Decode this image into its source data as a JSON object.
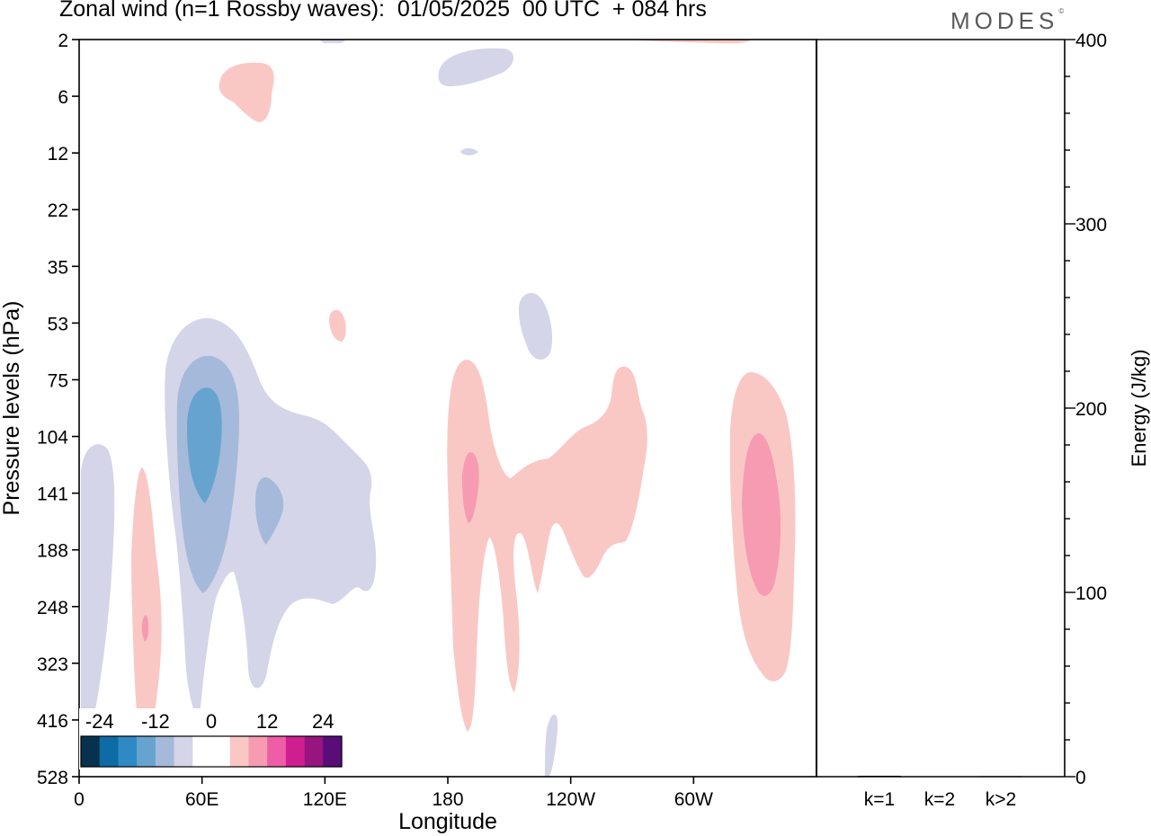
{
  "chart_data": {
    "type": "contour",
    "title": "Zonal wind (n=1 Rossby waves):  01/05/2025  00 UTC  + 084 hrs",
    "brand": "MODES",
    "xlabel": "Longitude",
    "ylabel": "Pressure levels (hPa)",
    "x_ticks": [
      "0",
      "60E",
      "120E",
      "180",
      "120W",
      "60W"
    ],
    "x_tick_degrees": [
      0,
      60,
      120,
      180,
      240,
      300
    ],
    "xlim": [
      0,
      360
    ],
    "y_levels": [
      "2",
      "6",
      "12",
      "22",
      "35",
      "53",
      "75",
      "104",
      "141",
      "188",
      "248",
      "323",
      "416",
      "528"
    ],
    "contour_levels": [
      -24,
      -21,
      -18,
      -15,
      -12,
      -9,
      -6,
      -3,
      3,
      6,
      9,
      12,
      15,
      18,
      21,
      24
    ],
    "colorbar_labels": [
      "-24",
      "-12",
      "0",
      "12",
      "24"
    ],
    "colorbar_colors": [
      "#06324e",
      "#0d6ba5",
      "#2e8ac4",
      "#66a4cf",
      "#a5b9da",
      "#d4d5e8",
      "#ffffff",
      "#ffffff",
      "#f9c8c5",
      "#f79bb2",
      "#ee5da6",
      "#cf1e8f",
      "#98147f",
      "#580d78"
    ],
    "features": [
      {
        "sign": "negative",
        "center_lon": 10,
        "center_level": "188",
        "peak": -3
      },
      {
        "sign": "negative",
        "center_lon": 63,
        "center_level": "104",
        "peak": -9
      },
      {
        "sign": "negative",
        "center_lon": 92,
        "center_level": "141",
        "peak": -6
      },
      {
        "sign": "negative",
        "center_lon": 210,
        "center_level": "53",
        "peak": -3
      },
      {
        "sign": "negative",
        "center_lon": 185,
        "center_level": "6",
        "peak": -3
      },
      {
        "sign": "positive",
        "center_lon": 32,
        "center_level": "248",
        "peak": 6
      },
      {
        "sign": "positive",
        "center_lon": 89,
        "center_level": "6",
        "peak": 3
      },
      {
        "sign": "positive",
        "center_lon": 190,
        "center_level": "141",
        "peak": 6
      },
      {
        "sign": "positive",
        "center_lon": 240,
        "center_level": "141",
        "peak": 3
      },
      {
        "sign": "positive",
        "center_lon": 330,
        "center_level": "141",
        "peak": 6
      }
    ],
    "energy_panel": {
      "ylabel": "Energy (J/kg)",
      "ylim": [
        0,
        400
      ],
      "y_ticks": [
        "0",
        "100",
        "200",
        "300",
        "400"
      ],
      "categories": [
        "k=1",
        "k=2",
        "k>2"
      ],
      "values": [
        0.5,
        0.2,
        0.3
      ]
    }
  }
}
